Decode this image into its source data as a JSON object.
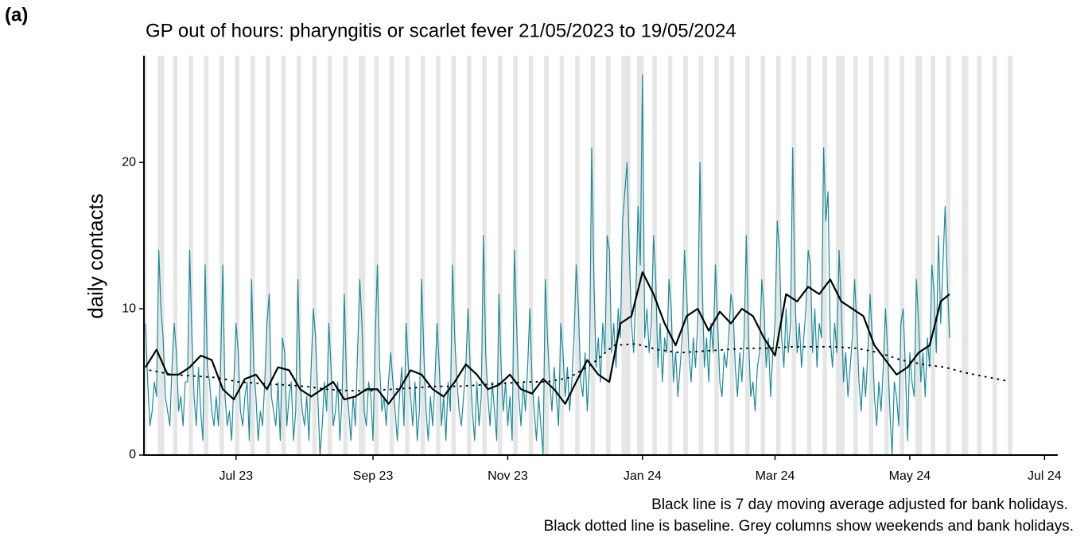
{
  "chart_data": {
    "type": "line",
    "panel_label": "(a)",
    "title": "GP out of hours: pharyngitis or scarlet fever 21/05/2023 to 19/05/2024",
    "y_label": "daily contacts",
    "notes": [
      "Black line is 7 day moving average adjusted for bank holidays.",
      "Black dotted line is baseline. Grey columns show weekends and bank holidays."
    ],
    "xlim": [
      -0.7,
      413
    ],
    "xticks": [
      {
        "value": 41,
        "label": "Jul 23"
      },
      {
        "value": 103,
        "label": "Sep 23"
      },
      {
        "value": 164,
        "label": "Nov 23"
      },
      {
        "value": 225,
        "label": "Jan 24"
      },
      {
        "value": 285,
        "label": "Mar 24"
      },
      {
        "value": 346,
        "label": "May 24"
      },
      {
        "value": 407,
        "label": "Jul 24"
      }
    ],
    "ylim": [
      0,
      27.3
    ],
    "yticks": [
      0,
      10,
      20
    ],
    "shade_color": "#e6e6e6",
    "shaded": [
      [
        0,
        0
      ],
      [
        6,
        8
      ],
      [
        13,
        14
      ],
      [
        20,
        21
      ],
      [
        27,
        28
      ],
      [
        34,
        35
      ],
      [
        41,
        42
      ],
      [
        48,
        49
      ],
      [
        55,
        56
      ],
      [
        62,
        63
      ],
      [
        69,
        70
      ],
      [
        76,
        77
      ],
      [
        83,
        84
      ],
      [
        90,
        91
      ],
      [
        97,
        99
      ],
      [
        104,
        105
      ],
      [
        111,
        112
      ],
      [
        118,
        119
      ],
      [
        125,
        126
      ],
      [
        132,
        133
      ],
      [
        139,
        140
      ],
      [
        146,
        147
      ],
      [
        153,
        154
      ],
      [
        160,
        161
      ],
      [
        167,
        168
      ],
      [
        174,
        175
      ],
      [
        181,
        182
      ],
      [
        188,
        189
      ],
      [
        195,
        196
      ],
      [
        202,
        203
      ],
      [
        209,
        210
      ],
      [
        216,
        219
      ],
      [
        223,
        225
      ],
      [
        230,
        231
      ],
      [
        237,
        238
      ],
      [
        244,
        245
      ],
      [
        251,
        252
      ],
      [
        258,
        259
      ],
      [
        265,
        266
      ],
      [
        272,
        273
      ],
      [
        279,
        280
      ],
      [
        286,
        287
      ],
      [
        293,
        294
      ],
      [
        300,
        301
      ],
      [
        307,
        308
      ],
      [
        313,
        316
      ],
      [
        321,
        322
      ],
      [
        328,
        329
      ],
      [
        335,
        336
      ],
      [
        342,
        343
      ],
      [
        349,
        351
      ],
      [
        356,
        357
      ],
      [
        363,
        364
      ],
      [
        370,
        372
      ],
      [
        377,
        378
      ],
      [
        384,
        385
      ],
      [
        391,
        392
      ]
    ],
    "series": [
      {
        "color": "#1a8a9a",
        "style": "solid",
        "width": 1.2,
        "x": [
          0,
          1,
          2,
          3,
          4,
          5,
          6,
          7,
          8,
          9,
          10,
          11,
          12,
          13,
          14,
          15,
          16,
          17,
          18,
          19,
          20,
          21,
          22,
          23,
          24,
          25,
          26,
          27,
          28,
          29,
          30,
          31,
          32,
          33,
          34,
          35,
          36,
          37,
          38,
          39,
          40,
          41,
          42,
          43,
          44,
          45,
          46,
          47,
          48,
          49,
          50,
          51,
          52,
          53,
          54,
          55,
          56,
          57,
          58,
          59,
          60,
          61,
          62,
          63,
          64,
          65,
          66,
          67,
          68,
          69,
          70,
          71,
          72,
          73,
          74,
          75,
          76,
          77,
          78,
          79,
          80,
          81,
          82,
          83,
          84,
          85,
          86,
          87,
          88,
          89,
          90,
          91,
          92,
          93,
          94,
          95,
          96,
          97,
          98,
          99,
          100,
          101,
          102,
          103,
          104,
          105,
          106,
          107,
          108,
          109,
          110,
          111,
          112,
          113,
          114,
          115,
          116,
          117,
          118,
          119,
          120,
          121,
          122,
          123,
          124,
          125,
          126,
          127,
          128,
          129,
          130,
          131,
          132,
          133,
          134,
          135,
          136,
          137,
          138,
          139,
          140,
          141,
          142,
          143,
          144,
          145,
          146,
          147,
          148,
          149,
          150,
          151,
          152,
          153,
          154,
          155,
          156,
          157,
          158,
          159,
          160,
          161,
          162,
          163,
          164,
          165,
          166,
          167,
          168,
          169,
          170,
          171,
          172,
          173,
          174,
          175,
          176,
          177,
          178,
          179,
          180,
          181,
          182,
          183,
          184,
          185,
          186,
          187,
          188,
          189,
          190,
          191,
          192,
          193,
          194,
          195,
          196,
          197,
          198,
          199,
          200,
          201,
          202,
          203,
          204,
          205,
          206,
          207,
          208,
          209,
          210,
          211,
          212,
          213,
          214,
          215,
          216,
          217,
          218,
          219,
          220,
          221,
          222,
          223,
          224,
          225,
          226,
          227,
          228,
          229,
          230,
          231,
          232,
          233,
          234,
          235,
          236,
          237,
          238,
          239,
          240,
          241,
          242,
          243,
          244,
          245,
          246,
          247,
          248,
          249,
          250,
          251,
          252,
          253,
          254,
          255,
          256,
          257,
          258,
          259,
          260,
          261,
          262,
          263,
          264,
          265,
          266,
          267,
          268,
          269,
          270,
          271,
          272,
          273,
          274,
          275,
          276,
          277,
          278,
          279,
          280,
          281,
          282,
          283,
          284,
          285,
          286,
          287,
          288,
          289,
          290,
          291,
          292,
          293,
          294,
          295,
          296,
          297,
          298,
          299,
          300,
          301,
          302,
          303,
          304,
          305,
          306,
          307,
          308,
          309,
          310,
          311,
          312,
          313,
          314,
          315,
          316,
          317,
          318,
          319,
          320,
          321,
          322,
          323,
          324,
          325,
          326,
          327,
          328,
          329,
          330,
          331,
          332,
          333,
          334,
          335,
          336,
          337,
          338,
          339,
          340,
          341,
          342,
          343,
          344,
          345,
          346,
          347,
          348,
          349,
          350,
          351,
          352,
          353,
          354,
          355,
          356,
          357,
          358,
          359,
          360,
          361,
          362,
          363,
          364
        ],
        "values": [
          9,
          5,
          2,
          3,
          5,
          4,
          14,
          10,
          8,
          4,
          3,
          2,
          6,
          9,
          7,
          3,
          4,
          2,
          5,
          5,
          14,
          8,
          4,
          2,
          6,
          3,
          1,
          13,
          6,
          5,
          3,
          2,
          4,
          2,
          6,
          13,
          4,
          2,
          3,
          1,
          5,
          9,
          7,
          3,
          2,
          4,
          5,
          1,
          12,
          6,
          4,
          1,
          3,
          2,
          5,
          9,
          11,
          4,
          3,
          2,
          5,
          1,
          8,
          7,
          2,
          4,
          5,
          1,
          3,
          12,
          5,
          3,
          2,
          4,
          1,
          6,
          10,
          8,
          4,
          0,
          2,
          5,
          3,
          9,
          6,
          2,
          3,
          5,
          1,
          4,
          11,
          5,
          3,
          1,
          4,
          2,
          7,
          12,
          9,
          3,
          2,
          5,
          4,
          1,
          8,
          13,
          6,
          3,
          4,
          2,
          5,
          7,
          5,
          3,
          1,
          4,
          6,
          2,
          9,
          6,
          4,
          2,
          5,
          1,
          3,
          12,
          7,
          3,
          1,
          4,
          2,
          5,
          9,
          6,
          2,
          4,
          1,
          5,
          3,
          13,
          8,
          5,
          3,
          2,
          4,
          6,
          10,
          6,
          3,
          1,
          5,
          2,
          4,
          15,
          7,
          4,
          2,
          5,
          3,
          1,
          11,
          6,
          3,
          5,
          2,
          4,
          1,
          14,
          9,
          4,
          2,
          5,
          3,
          6,
          10,
          5,
          3,
          1,
          4,
          2,
          0,
          12,
          8,
          5,
          3,
          6,
          4,
          2,
          9,
          7,
          4,
          6,
          3,
          5,
          8,
          13,
          10,
          5,
          4,
          7,
          3,
          6,
          21,
          12,
          6,
          8,
          5,
          9,
          7,
          15,
          14,
          7,
          9,
          6,
          10,
          8,
          16,
          18,
          20,
          14,
          9,
          7,
          11,
          17,
          13,
          26,
          8,
          10,
          7,
          9,
          15,
          12,
          6,
          9,
          5,
          8,
          7,
          12,
          10,
          5,
          7,
          4,
          6,
          8,
          14,
          11,
          7,
          5,
          8,
          6,
          9,
          20,
          12,
          6,
          8,
          5,
          9,
          7,
          13,
          9,
          5,
          4,
          7,
          6,
          8,
          11,
          10,
          6,
          4,
          7,
          5,
          8,
          15,
          8,
          4,
          5,
          3,
          6,
          7,
          12,
          10,
          6,
          8,
          4,
          7,
          9,
          16,
          14,
          8,
          6,
          10,
          7,
          9,
          21,
          11,
          7,
          9,
          6,
          8,
          10,
          14,
          13,
          7,
          10,
          6,
          9,
          8,
          21,
          16,
          18,
          8,
          6,
          9,
          7,
          14,
          10,
          5,
          7,
          4,
          6,
          8,
          12,
          9,
          5,
          3,
          6,
          4,
          7,
          11,
          8,
          4,
          2,
          5,
          3,
          6,
          10,
          7,
          3,
          0,
          5,
          4,
          2,
          9,
          10,
          6,
          1,
          7,
          5,
          4,
          12,
          9,
          5,
          7,
          4,
          8,
          6,
          13,
          11,
          7,
          15,
          9,
          13,
          17,
          12,
          8
        ]
      },
      {
        "color": "#000000",
        "style": "solid",
        "width": 2.2,
        "x": [
          0,
          5,
          10,
          15,
          20,
          25,
          30,
          35,
          40,
          45,
          50,
          55,
          60,
          65,
          70,
          75,
          80,
          85,
          90,
          95,
          100,
          105,
          110,
          115,
          120,
          125,
          130,
          135,
          140,
          145,
          150,
          155,
          160,
          165,
          170,
          175,
          180,
          185,
          190,
          195,
          200,
          205,
          210,
          215,
          220,
          225,
          230,
          235,
          240,
          245,
          250,
          255,
          260,
          265,
          270,
          275,
          280,
          285,
          290,
          295,
          300,
          305,
          310,
          315,
          320,
          325,
          330,
          335,
          340,
          345,
          350,
          355,
          360,
          364
        ],
        "values": [
          6,
          7.2,
          5.5,
          5.5,
          6,
          6.8,
          6.5,
          4.5,
          3.8,
          5.2,
          5.5,
          4.5,
          6,
          5.8,
          4.5,
          4,
          4.5,
          5,
          3.8,
          4,
          4.5,
          4.5,
          3.5,
          4.5,
          5.8,
          5.5,
          4.5,
          4,
          5,
          6.2,
          5.5,
          4.5,
          4.8,
          5.5,
          4.5,
          4.2,
          5.2,
          4.5,
          3.5,
          5,
          6.5,
          5.5,
          5,
          9,
          9.5,
          12.5,
          11,
          9,
          7.5,
          9.5,
          10,
          8.5,
          9.8,
          9,
          10,
          9.5,
          8,
          6.8,
          11,
          10.5,
          11.5,
          11,
          12,
          10.5,
          10,
          9.5,
          7.5,
          6.5,
          5.5,
          6,
          7,
          7.5,
          10.5,
          11
        ]
      },
      {
        "color": "#000000",
        "style": "dotted",
        "width": 2,
        "x": [
          2,
          12,
          22,
          32,
          42,
          52,
          62,
          72,
          82,
          92,
          102,
          112,
          122,
          132,
          142,
          152,
          162,
          172,
          182,
          192,
          202,
          212,
          222,
          232,
          242,
          252,
          262,
          272,
          282,
          292,
          302,
          312,
          322,
          332,
          342,
          352,
          362,
          372,
          382,
          389
        ],
        "values": [
          5.8,
          5.5,
          5.4,
          5.3,
          5.0,
          4.9,
          4.8,
          4.7,
          4.5,
          4.4,
          4.4,
          4.5,
          4.6,
          4.7,
          4.7,
          4.8,
          4.9,
          5.0,
          5.0,
          5.3,
          6.2,
          7.5,
          7.6,
          7.2,
          7.0,
          7.1,
          7.2,
          7.3,
          7.3,
          7.4,
          7.4,
          7.4,
          7.3,
          7.0,
          6.5,
          6.2,
          6.0,
          5.6,
          5.3,
          5.1
        ]
      }
    ]
  }
}
